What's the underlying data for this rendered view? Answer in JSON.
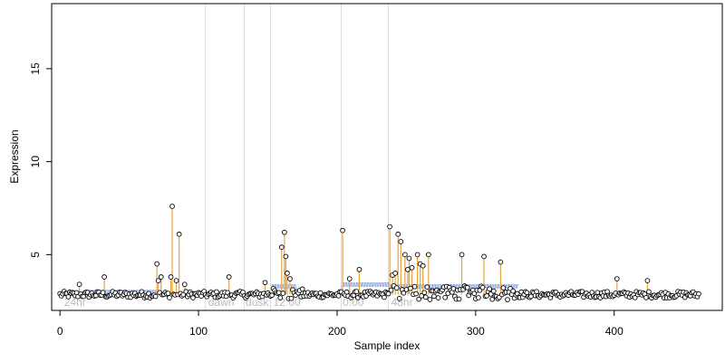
{
  "chart_data": {
    "type": "scatter",
    "xlabel": "Sample index",
    "ylabel": "Expression",
    "xlim": [
      -6,
      478
    ],
    "ylim": [
      2,
      18.5
    ],
    "x_ticks": [
      0,
      100,
      200,
      300,
      400
    ],
    "y_ticks": [
      5,
      10,
      15
    ],
    "grid": false,
    "baseline": 2.85,
    "colors": {
      "points": "#000000",
      "highlight_stems": "#e8a33a",
      "blue_steps": "#8fa8d8",
      "boundary_lines": "#dddddd",
      "phase_labels": "#bbbbbb"
    },
    "phase_boundaries": [
      105,
      133,
      152,
      203,
      237
    ],
    "phase_labels": [
      {
        "x": 3,
        "text": "24hr"
      },
      {
        "x": 107,
        "text": "dawn"
      },
      {
        "x": 134,
        "text": "dusk"
      },
      {
        "x": 154,
        "text": "12:00"
      },
      {
        "x": 204,
        "text": "0:00"
      },
      {
        "x": 239,
        "text": "48hr"
      }
    ],
    "blue_segments": [
      {
        "x": [
          20,
          70
        ],
        "level": 2.9
      },
      {
        "x": [
          152,
          170
        ],
        "level": 3.2
      },
      {
        "x": [
          203,
          237
        ],
        "level": 3.3
      },
      {
        "x": [
          237,
          330
        ],
        "level": 3.2
      }
    ],
    "highlight_points": [
      {
        "x": 14,
        "y": 3.4
      },
      {
        "x": 32,
        "y": 3.8
      },
      {
        "x": 70,
        "y": 4.5
      },
      {
        "x": 71,
        "y": 3.6
      },
      {
        "x": 73,
        "y": 3.8
      },
      {
        "x": 80,
        "y": 3.8
      },
      {
        "x": 81,
        "y": 7.6
      },
      {
        "x": 84,
        "y": 3.6
      },
      {
        "x": 86,
        "y": 6.1
      },
      {
        "x": 90,
        "y": 3.4
      },
      {
        "x": 122,
        "y": 3.8
      },
      {
        "x": 148,
        "y": 3.5
      },
      {
        "x": 160,
        "y": 5.4
      },
      {
        "x": 162,
        "y": 6.2
      },
      {
        "x": 163,
        "y": 4.9
      },
      {
        "x": 164,
        "y": 4.0
      },
      {
        "x": 166,
        "y": 3.7
      },
      {
        "x": 204,
        "y": 6.3
      },
      {
        "x": 209,
        "y": 3.7
      },
      {
        "x": 216,
        "y": 4.2
      },
      {
        "x": 238,
        "y": 6.5
      },
      {
        "x": 240,
        "y": 3.9
      },
      {
        "x": 242,
        "y": 4.0
      },
      {
        "x": 244,
        "y": 6.1
      },
      {
        "x": 246,
        "y": 5.7
      },
      {
        "x": 249,
        "y": 5.0
      },
      {
        "x": 251,
        "y": 4.2
      },
      {
        "x": 252,
        "y": 4.8
      },
      {
        "x": 254,
        "y": 4.3
      },
      {
        "x": 258,
        "y": 5.0
      },
      {
        "x": 260,
        "y": 4.5
      },
      {
        "x": 262,
        "y": 4.4
      },
      {
        "x": 266,
        "y": 5.0
      },
      {
        "x": 290,
        "y": 5.0
      },
      {
        "x": 306,
        "y": 4.9
      },
      {
        "x": 318,
        "y": 4.6
      },
      {
        "x": 402,
        "y": 3.7
      },
      {
        "x": 424,
        "y": 3.6
      }
    ],
    "background_points": {
      "x_range": [
        0,
        461
      ],
      "centre": 2.85,
      "note": "dense baseline cloud of open circles"
    }
  }
}
